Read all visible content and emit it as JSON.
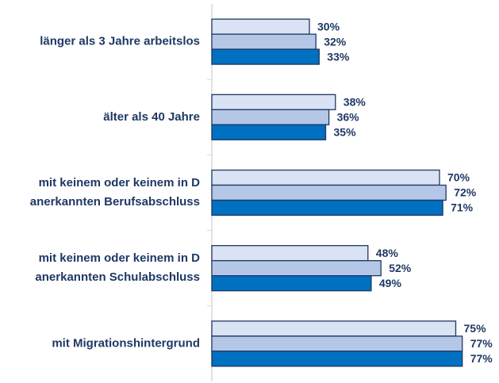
{
  "chart_data": {
    "type": "barh",
    "categories": [
      [
        "länger als  3 Jahre arbeitslos"
      ],
      [
        "älter als 40 Jahre"
      ],
      [
        "mit keinem oder keinem in D",
        "anerkannten Berufsabschluss"
      ],
      [
        "mit keinem oder keinem in D",
        "anerkannten Schulabschluss"
      ],
      [
        "mit Migrationshintergrund"
      ]
    ],
    "series": [
      {
        "color": "#dae3f3",
        "values": [
          30,
          38,
          70,
          48,
          75
        ],
        "value_labels": [
          "30%",
          "38%",
          "70%",
          "48%",
          "75%"
        ]
      },
      {
        "color": "#b4c7e7",
        "values": [
          32,
          36,
          72,
          52,
          77
        ],
        "value_labels": [
          "32%",
          "36%",
          "72%",
          "52%",
          "77%"
        ]
      },
      {
        "color": "#0070c0",
        "values": [
          33,
          35,
          71,
          49,
          77
        ],
        "value_labels": [
          "33%",
          "35%",
          "71%",
          "49%",
          "77%"
        ]
      }
    ],
    "xlim": [
      0,
      100
    ]
  }
}
